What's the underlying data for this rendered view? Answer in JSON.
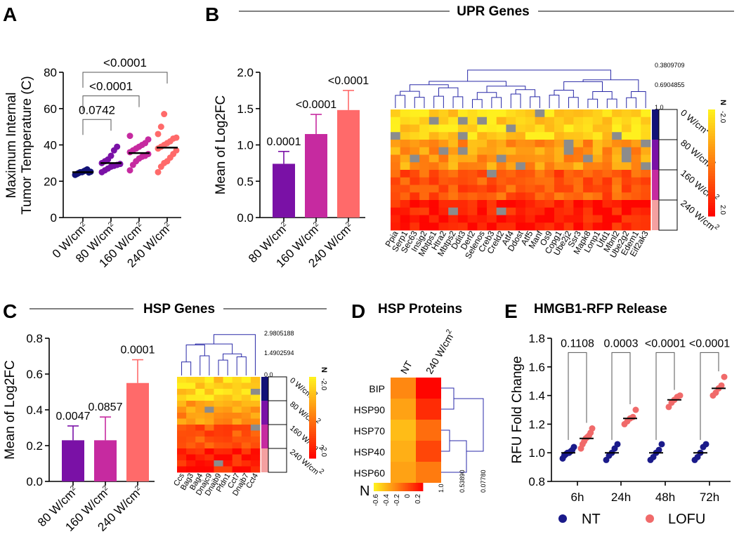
{
  "colors": {
    "navy": "#121277",
    "purple": "#7a11a6",
    "magenta": "#c62aa0",
    "salmon": "#ff6a6a",
    "nt_dot": "#1a1a8a",
    "lofu_dot": "#f06a6a",
    "dendro": "#2a2aa8",
    "gray_cell": "#8c8c8c"
  },
  "panels": {
    "A": "A",
    "B": "B",
    "C": "C",
    "D": "D",
    "E": "E"
  },
  "chart_data": [
    {
      "id": "A",
      "type": "scatter",
      "ylabel_line1": "Maximum Internal",
      "ylabel_line2": "Tumor Temperature (C)",
      "ylim": [
        0,
        80
      ],
      "yticks": [
        "0",
        "20",
        "40",
        "60",
        "80"
      ],
      "categories": [
        "0 W/cm",
        "80 W/cm",
        "160 W/cm",
        "240 W/cm"
      ],
      "superscript": "2",
      "means": [
        25,
        30,
        35.5,
        38.5
      ],
      "points": [
        [
          23.5,
          24,
          24.5,
          25,
          25,
          25.5,
          26,
          26.5,
          24.8,
          25.2
        ],
        [
          25,
          26,
          27,
          28,
          28.5,
          29,
          29.5,
          30,
          31,
          32,
          34,
          37,
          39
        ],
        [
          26,
          29,
          31,
          32.5,
          33.5,
          34,
          35,
          36,
          37,
          38,
          39,
          40,
          41,
          43,
          45
        ],
        [
          25,
          28,
          30,
          31,
          33,
          35,
          37,
          38,
          39,
          40,
          41,
          42,
          43.5,
          44,
          46,
          50,
          57
        ]
      ],
      "comparisons": [
        {
          "label": "0.0742",
          "a": 0,
          "b": 1,
          "y": 54
        },
        {
          "label": "<0.0001",
          "a": 0,
          "b": 2,
          "y": 67
        },
        {
          "label": "<0.0001",
          "a": 0,
          "b": 3,
          "y": 80
        }
      ]
    },
    {
      "id": "B",
      "type": "bar",
      "title": "UPR Genes",
      "ylabel": "Mean of Log2FC",
      "ylim": [
        0,
        2.0
      ],
      "yticks": [
        "0.0",
        "0.5",
        "1.0",
        "1.5",
        "2.0"
      ],
      "categories": [
        "80 W/cm",
        "160 W/cm",
        "240 W/cm"
      ],
      "superscript": "2",
      "values": [
        0.74,
        1.15,
        1.48
      ],
      "errors": [
        0.17,
        0.27,
        0.27
      ],
      "pvalues": [
        "0.0001",
        "<0.0001",
        "<0.0001"
      ]
    },
    {
      "id": "B-heatmap",
      "type": "heatmap",
      "genes": [
        "Ppia",
        "Serp1",
        "Sec63",
        "Insig2",
        "Mbtps1",
        "Htra2",
        "Mbtps2",
        "Ddit3",
        "Derl2",
        "Selenos",
        "Creb3",
        "Creld2",
        "Atf4",
        "Ddost",
        "Atf5",
        "Manf",
        "Os9",
        "Copg1",
        "Ube2j2",
        "Ssr3",
        "Mapk8",
        "Lonp1",
        "Ufd1",
        "Mbnl2",
        "Ube2g2",
        "Edem1",
        "Eif2ak3"
      ],
      "groups": [
        "0 W/cm",
        "80 W/cm",
        "160 W/cm",
        "240 W/cm"
      ],
      "superscript": "2",
      "rows_per_group": 4,
      "tree_labels": [
        "0.3809709",
        "0.6904855",
        "1.0"
      ],
      "scale_top": "-2.0",
      "scale_bottom": "2.0",
      "scale_label": "N"
    },
    {
      "id": "C",
      "type": "bar",
      "title": "HSP Genes",
      "ylabel": "Mean of Log2FC",
      "ylim": [
        0,
        0.8
      ],
      "yticks": [
        "0.0",
        "0.2",
        "0.4",
        "0.6",
        "0.8"
      ],
      "categories": [
        "80 W/cm",
        "160 W/cm",
        "240 W/cm"
      ],
      "superscript": "2",
      "values": [
        0.23,
        0.23,
        0.55
      ],
      "errors": [
        0.08,
        0.13,
        0.13
      ],
      "pvalues": [
        "0.0047",
        "0.0857",
        "0.0001"
      ]
    },
    {
      "id": "C-heatmap",
      "type": "heatmap",
      "genes": [
        "Ccs",
        "Bag3",
        "Bag4",
        "Dnajc9",
        "Dnajb9",
        "Pfdn1",
        "Cct7",
        "Dnajb7",
        "Cct4"
      ],
      "groups": [
        "0 W/cm",
        "80 W/cm",
        "160 W/cm",
        "240 W/cm"
      ],
      "superscript": "2",
      "rows_per_group": 4,
      "tree_labels": [
        "2.9805188",
        "1.4902594",
        "0.0"
      ],
      "scale_top": "-2.0",
      "scale_bottom": "2.0",
      "scale_label": "N"
    },
    {
      "id": "D",
      "type": "heatmap",
      "title": "HSP Proteins",
      "columns": [
        "NT",
        "240 W/cm"
      ],
      "superscript": "2",
      "rows": [
        "BIP",
        "HSP90",
        "HSP70",
        "HSP40",
        "HSP60"
      ],
      "values": [
        [
          -0.2,
          0.3
        ],
        [
          -0.3,
          0.15
        ],
        [
          -0.4,
          -0.1
        ],
        [
          -0.35,
          0.05
        ],
        [
          -0.3,
          -0.15
        ]
      ],
      "scale_label": "N",
      "scale_ticks": [
        "-0.6",
        "-0.4",
        "-0.2",
        "0",
        "0.2"
      ],
      "tree_labels": [
        "1.0",
        "0.53890",
        "0.07780"
      ]
    },
    {
      "id": "E",
      "type": "scatter",
      "title": "HMGB1-RFP Release",
      "ylabel": "RFU  Fold  Change",
      "ylim": [
        0.8,
        1.8
      ],
      "yticks": [
        "0.8",
        "1.0",
        "1.2",
        "1.4",
        "1.6",
        "1.8"
      ],
      "categories": [
        "6h",
        "24h",
        "48h",
        "72h"
      ],
      "legend": [
        "NT",
        "LOFU"
      ],
      "pvalues": [
        "0.1108",
        "0.0003",
        "<0.0001",
        "<0.0001"
      ],
      "nt_means": [
        1.0,
        1.0,
        1.0,
        1.0
      ],
      "lofu_means": [
        1.1,
        1.24,
        1.37,
        1.45
      ],
      "nt_points": [
        [
          0.96,
          0.98,
          0.99,
          1.0,
          1.0,
          1.01,
          1.02,
          1.04
        ],
        [
          0.95,
          0.98,
          1.0,
          1.03,
          1.06
        ],
        [
          0.95,
          0.97,
          1.0,
          1.02,
          1.06
        ],
        [
          0.95,
          0.97,
          1.0,
          1.04,
          1.06
        ]
      ],
      "lofu_points": [
        [
          1.03,
          1.06,
          1.08,
          1.1,
          1.11,
          1.12,
          1.14,
          1.17
        ],
        [
          1.2,
          1.22,
          1.24,
          1.25,
          1.3
        ],
        [
          1.32,
          1.35,
          1.37,
          1.39,
          1.4
        ],
        [
          1.4,
          1.42,
          1.45,
          1.47,
          1.53
        ]
      ]
    }
  ]
}
